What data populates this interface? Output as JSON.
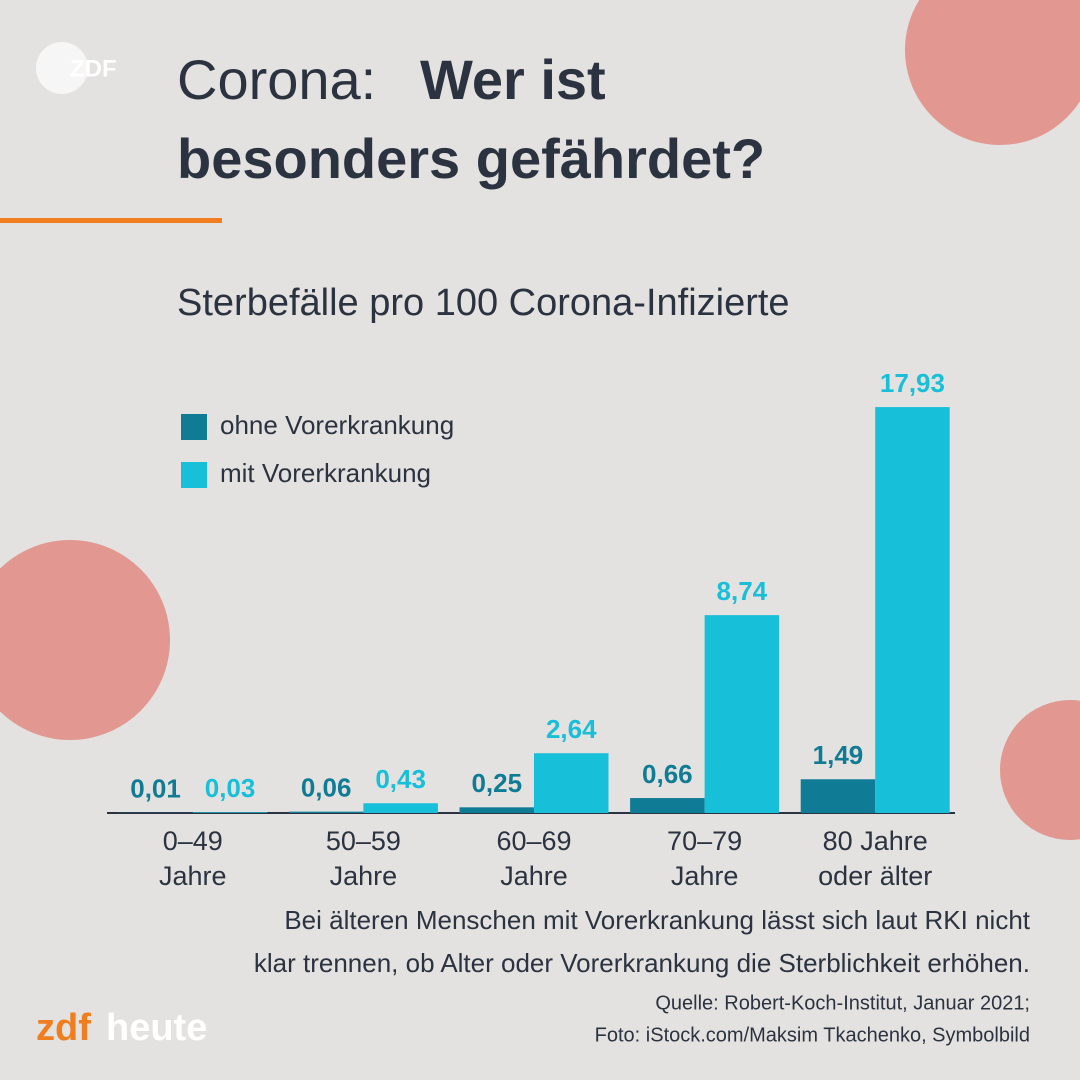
{
  "chart_data": {
    "type": "bar",
    "logo_top": "ZDF",
    "title_light": "Corona:",
    "title_bold": [
      "Wer ist",
      "besonders gefährdet?"
    ],
    "subtitle": "Sterbefälle pro 100 Corona-Infizierte",
    "categories": [
      [
        "0–49",
        "Jahre"
      ],
      [
        "50–59",
        "Jahre"
      ],
      [
        "60–69",
        "Jahre"
      ],
      [
        "70–79",
        "Jahre"
      ],
      [
        "80 Jahre",
        "oder älter"
      ]
    ],
    "series": [
      {
        "name": "ohne Vorerkrankung",
        "color": "#0f7b94",
        "values": [
          0.01,
          0.06,
          0.25,
          0.66,
          1.49
        ],
        "value_labels": [
          "0,01",
          "0,06",
          "0,25",
          "0,66",
          "1,49"
        ]
      },
      {
        "name": "mit Vorerkrankung",
        "color": "#17bfd8",
        "values": [
          0.03,
          0.43,
          2.64,
          8.74,
          17.93
        ],
        "value_labels": [
          "0,03",
          "0,43",
          "2,64",
          "8,74",
          "17,93"
        ]
      }
    ],
    "ylim": [
      0,
      18
    ],
    "note": [
      "Bei älteren Menschen mit Vorerkrankung lässt sich laut RKI nicht",
      "klar trennen, ob Alter oder Vorerkrankung die Sterblichkeit erhöhen."
    ],
    "source": [
      "Quelle: Robert-Koch-Institut, Januar 2021;",
      "Foto: iStock.com/Maksim Tkachenko, Symbolbild"
    ],
    "brand": [
      "zdf",
      "heute"
    ]
  }
}
